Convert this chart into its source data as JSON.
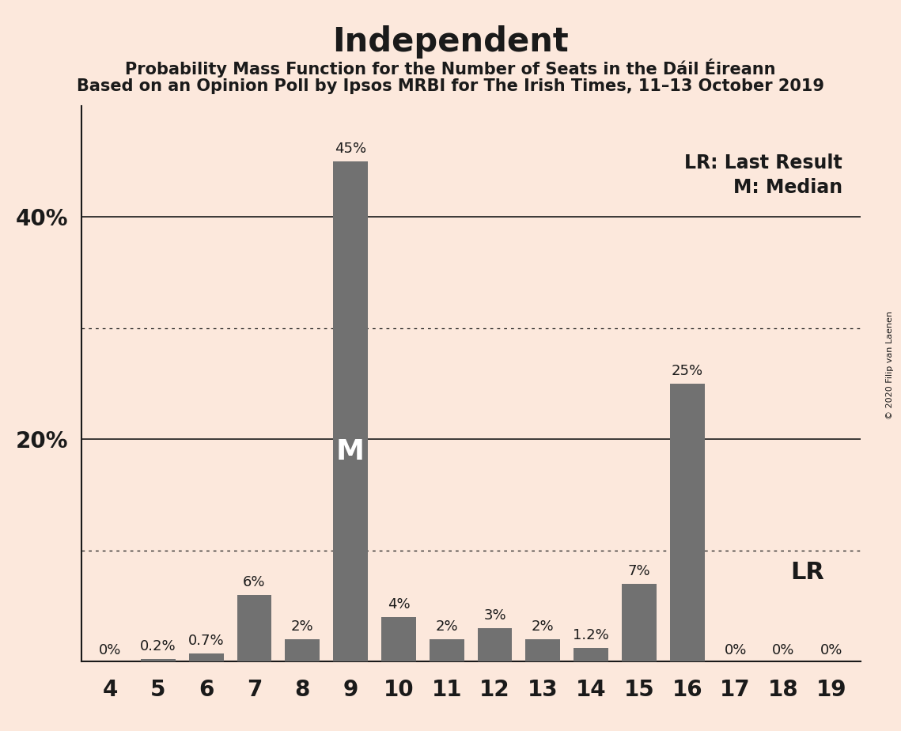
{
  "title": "Independent",
  "subtitle1": "Probability Mass Function for the Number of Seats in the Dáil Éireann",
  "subtitle2": "Based on an Opinion Poll by Ipsos MRBI for The Irish Times, 11–13 October 2019",
  "copyright": "© 2020 Filip van Laenen",
  "categories": [
    4,
    5,
    6,
    7,
    8,
    9,
    10,
    11,
    12,
    13,
    14,
    15,
    16,
    17,
    18,
    19
  ],
  "values": [
    0.0,
    0.2,
    0.7,
    6.0,
    2.0,
    45.0,
    4.0,
    2.0,
    3.0,
    2.0,
    1.2,
    7.0,
    25.0,
    0.0,
    0.0,
    0.0
  ],
  "labels": [
    "0%",
    "0.2%",
    "0.7%",
    "6%",
    "2%",
    "45%",
    "4%",
    "2%",
    "3%",
    "2%",
    "1.2%",
    "7%",
    "25%",
    "0%",
    "0%",
    "0%"
  ],
  "bar_color": "#717171",
  "background_color": "#fce8dc",
  "median_seat": 9,
  "median_label": "M",
  "lr_label": "LR",
  "legend_text1": "LR: Last Result",
  "legend_text2": "M: Median",
  "major_hlines": [
    20,
    40
  ],
  "dotted_hlines": [
    10,
    30
  ],
  "ytick_positions": [
    20,
    40
  ],
  "ytick_labels": [
    "20%",
    "40%"
  ],
  "ylim": [
    0,
    50
  ],
  "title_fontsize": 30,
  "subtitle_fontsize": 15,
  "axis_tick_fontsize": 20,
  "bar_label_fontsize": 13,
  "legend_fontsize": 17,
  "lr_inline_fontsize": 22,
  "copyright_fontsize": 8
}
